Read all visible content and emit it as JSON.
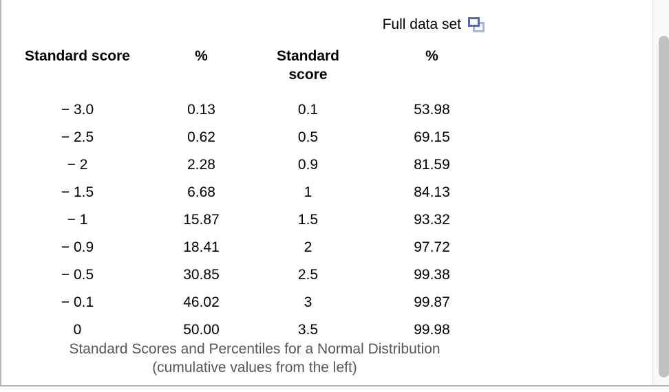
{
  "link": {
    "label": "Full data set",
    "icon": "popup-window-icon"
  },
  "table": {
    "headers": [
      "Standard score",
      "%",
      "Standard score",
      "%"
    ],
    "rows": [
      [
        "− 3.0",
        "0.13",
        "0.1",
        "53.98"
      ],
      [
        "− 2.5",
        "0.62",
        "0.5",
        "69.15"
      ],
      [
        "− 2",
        "2.28",
        "0.9",
        "81.59"
      ],
      [
        "− 1.5",
        "6.68",
        "1",
        "84.13"
      ],
      [
        "− 1",
        "15.87",
        "1.5",
        "93.32"
      ],
      [
        "− 0.9",
        "18.41",
        "2",
        "97.72"
      ],
      [
        "− 0.5",
        "30.85",
        "2.5",
        "99.38"
      ],
      [
        "− 0.1",
        "46.02",
        "3",
        "99.87"
      ],
      [
        "0",
        "50.00",
        "3.5",
        "99.98"
      ]
    ]
  },
  "caption": {
    "line1": "Standard Scores and Percentiles for a Normal Distribution",
    "line2": "(cumulative values from the left)"
  },
  "colors": {
    "icon_front_blue": "#5568ad",
    "icon_back_blue": "#aab6d9",
    "border_gray": "#b5b5b5",
    "caption_gray": "#54565a",
    "scrollbar_thumb": "#c1c1c1",
    "scrollbar_track": "#fafafa"
  }
}
